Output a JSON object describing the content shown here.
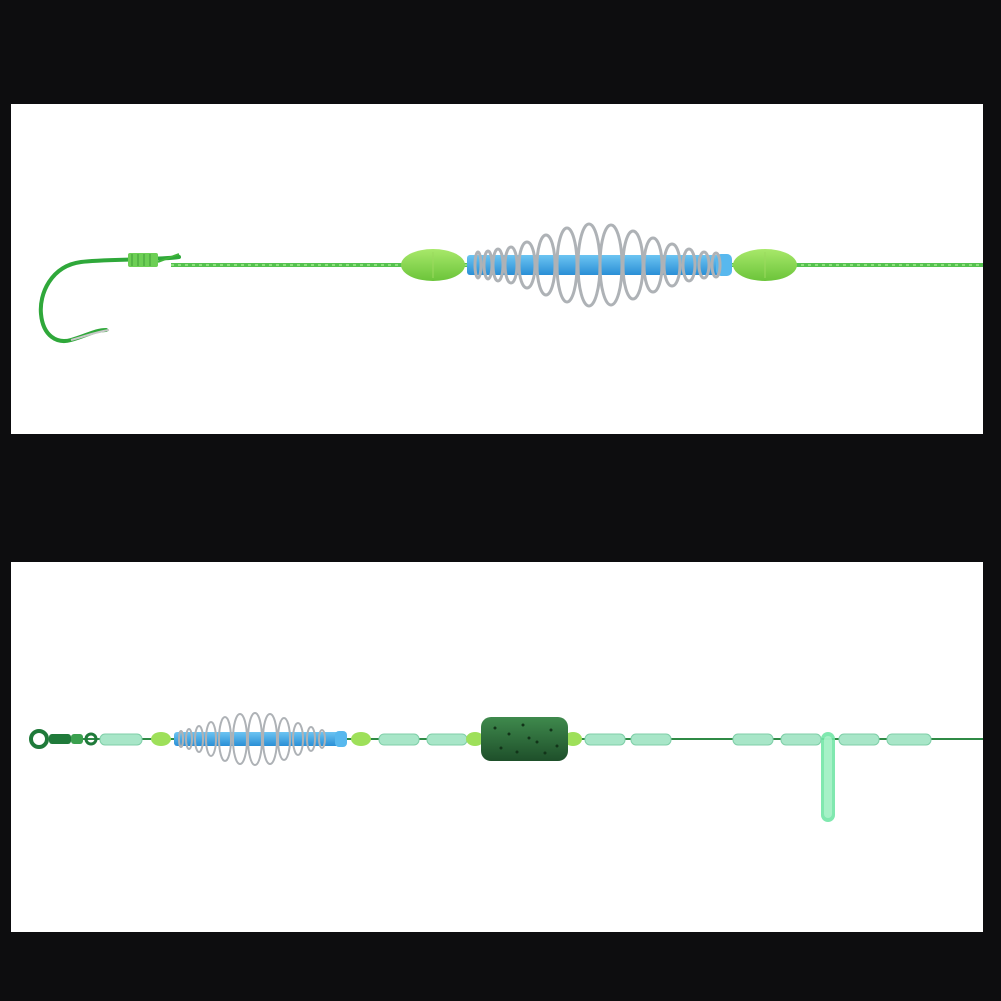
{
  "image": {
    "background": "#0d0d0f",
    "panel_color": "#ffffff",
    "colors": {
      "line_green": "#4cc64a",
      "bead_green": "#86d94a",
      "tube_blue": "#3aa6e6",
      "coil_silver": "#b9bcbf",
      "sinker_green": "#2e6a3a",
      "glow_green": "#6fe3a3",
      "swivel_green": "#1f7a3a"
    },
    "top_panel": {
      "subject": "hook-with-spring-feeder-rig",
      "icons": [
        "fishing-hook-icon",
        "spring-feeder-icon",
        "bead-icon"
      ]
    },
    "bottom_panel": {
      "subject": "float-rig-with-feeder-sinker-and-glow-stick",
      "icons": [
        "swivel-icon",
        "spring-feeder-icon",
        "sinker-icon",
        "glow-stick-icon",
        "space-bead-icon"
      ]
    }
  }
}
